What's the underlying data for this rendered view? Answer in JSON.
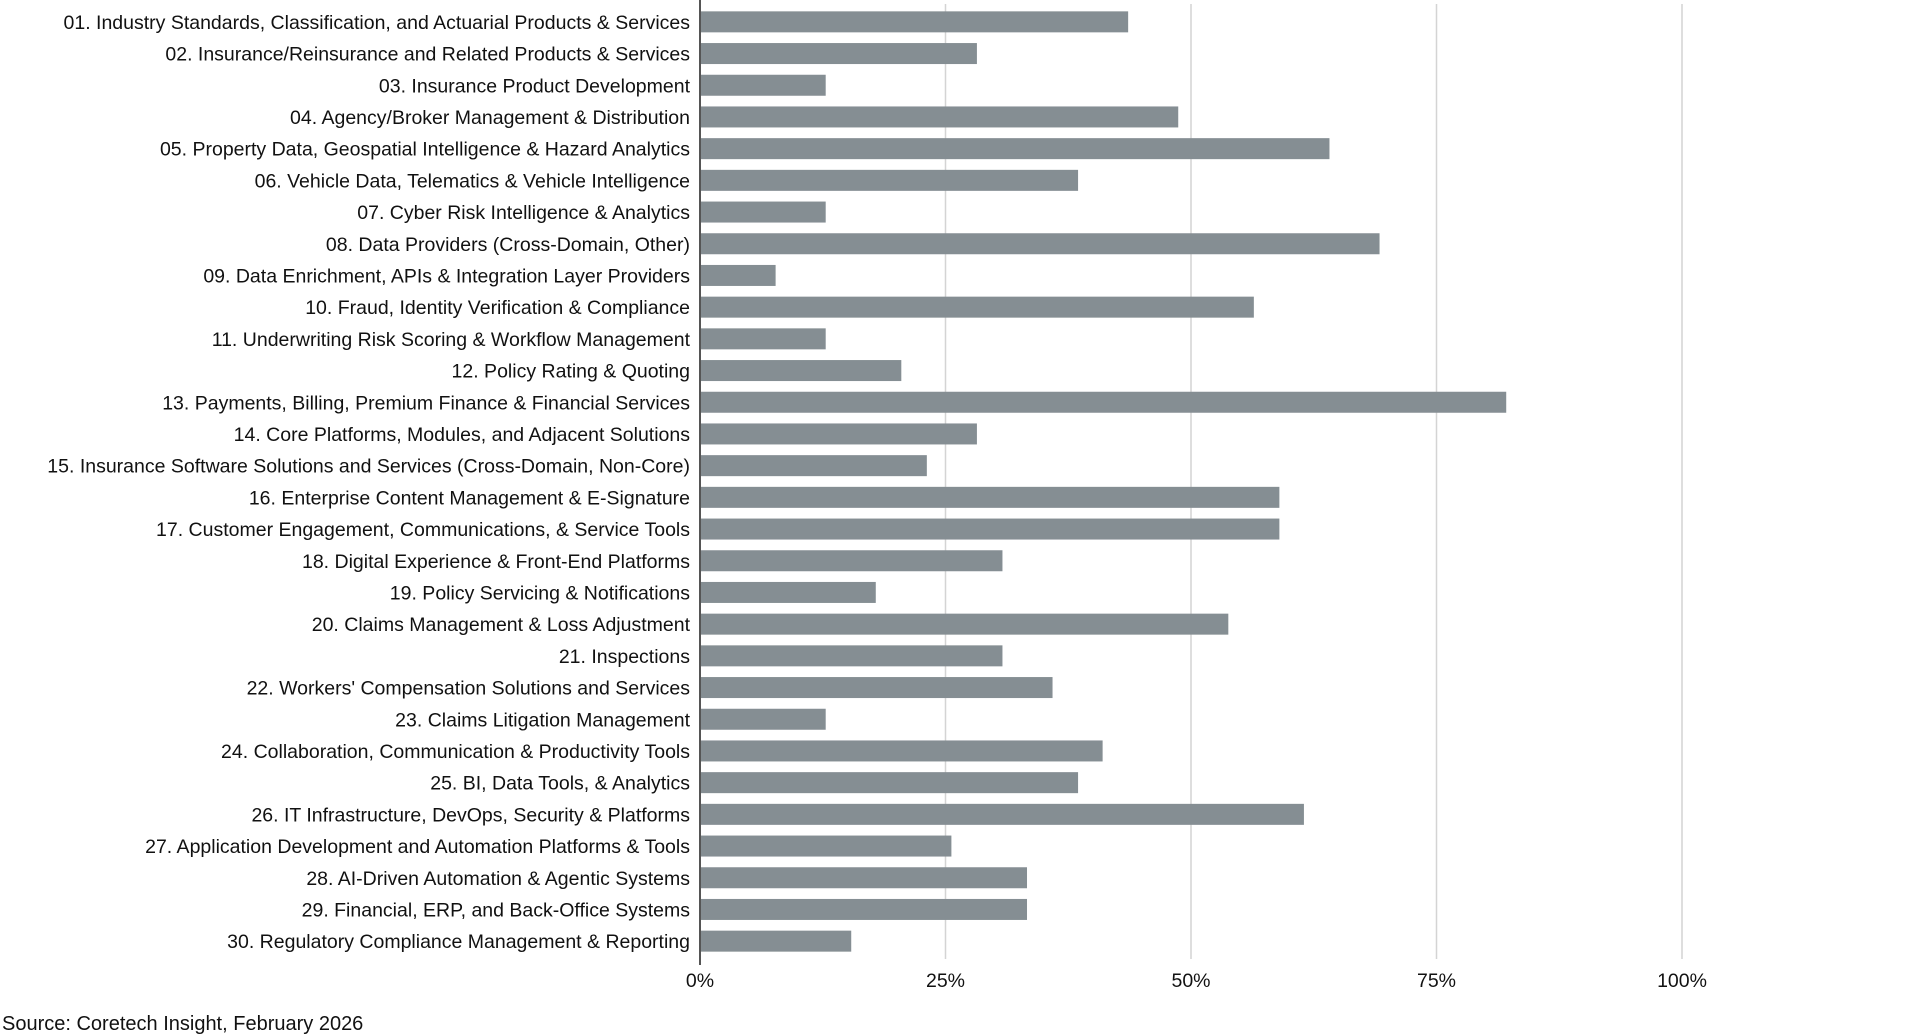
{
  "chart_data": {
    "type": "bar",
    "orientation": "horizontal",
    "title": "",
    "xlabel": "",
    "ylabel": "",
    "xlim": [
      0,
      100
    ],
    "grid": true,
    "bar_color": "#858e93",
    "grid_color": "#d4d4d4",
    "axis_color": "#555555",
    "ticks": [
      {
        "value": 0,
        "label": "0%"
      },
      {
        "value": 25,
        "label": "25%"
      },
      {
        "value": 50,
        "label": "50%"
      },
      {
        "value": 75,
        "label": "75%"
      },
      {
        "value": 100,
        "label": "100%"
      }
    ],
    "categories": [
      "01. Industry Standards, Classification, and Actuarial Products & Services",
      "02. Insurance/Reinsurance and Related Products & Services",
      "03. Insurance Product Development",
      "04. Agency/Broker Management & Distribution",
      "05. Property Data, Geospatial Intelligence & Hazard Analytics",
      "06. Vehicle Data, Telematics & Vehicle Intelligence",
      "07. Cyber Risk Intelligence & Analytics",
      "08. Data Providers (Cross-Domain, Other)",
      "09. Data Enrichment, APIs & Integration Layer Providers",
      "10. Fraud, Identity Verification & Compliance",
      "11. Underwriting Risk Scoring & Workflow Management",
      "12. Policy Rating & Quoting",
      "13. Payments, Billing, Premium Finance & Financial Services",
      "14. Core Platforms, Modules, and Adjacent Solutions",
      "15. Insurance Software Solutions and Services (Cross-Domain, Non-Core)",
      "16. Enterprise Content Management & E-Signature",
      "17. Customer Engagement, Communications, & Service Tools",
      "18. Digital Experience & Front-End Platforms",
      "19. Policy Servicing & Notifications",
      "20. Claims Management & Loss Adjustment",
      "21. Inspections",
      "22. Workers' Compensation Solutions and Services",
      "23. Claims Litigation Management",
      "24. Collaboration, Communication & Productivity Tools",
      "25. BI, Data Tools, & Analytics",
      "26. IT Infrastructure, DevOps, Security & Platforms",
      "27. Application Development and Automation Platforms & Tools",
      "28. AI-Driven Automation & Agentic Systems",
      "29. Financial, ERP, and Back-Office Systems",
      "30. Regulatory Compliance Management & Reporting"
    ],
    "values": [
      43.6,
      28.2,
      12.8,
      48.7,
      64.1,
      38.5,
      12.8,
      69.2,
      7.7,
      56.4,
      12.8,
      20.5,
      82.1,
      28.2,
      23.1,
      59.0,
      59.0,
      30.8,
      17.9,
      53.8,
      30.8,
      35.9,
      12.8,
      41.0,
      38.5,
      61.5,
      25.6,
      33.3,
      33.3,
      15.4
    ]
  },
  "source_note": "Source: Coretech Insight, February 2026"
}
